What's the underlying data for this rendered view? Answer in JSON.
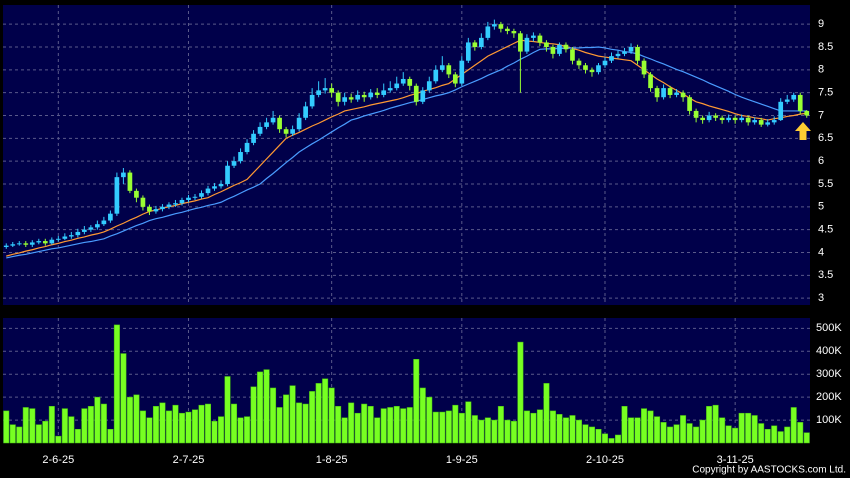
{
  "chart_data": {
    "type": "candlestick",
    "categories": [
      null,
      null,
      null,
      null,
      null,
      null,
      null,
      null,
      "2-6-25",
      null,
      null,
      null,
      null,
      null,
      null,
      null,
      null,
      null,
      null,
      null,
      null,
      null,
      null,
      null,
      null,
      null,
      null,
      null,
      "2-7-25",
      null,
      null,
      null,
      null,
      null,
      null,
      null,
      null,
      null,
      null,
      null,
      null,
      null,
      null,
      null,
      null,
      null,
      null,
      null,
      null,
      null,
      "1-8-25",
      null,
      null,
      null,
      null,
      null,
      null,
      null,
      null,
      null,
      null,
      null,
      null,
      null,
      null,
      null,
      null,
      null,
      null,
      null,
      "1-9-25",
      null,
      null,
      null,
      null,
      null,
      null,
      null,
      null,
      null,
      null,
      null,
      null,
      null,
      null,
      null,
      null,
      null,
      null,
      null,
      null,
      null,
      "2-10-25",
      null,
      null,
      null,
      null,
      null,
      null,
      null,
      null,
      null,
      null,
      null,
      null,
      null,
      null,
      null,
      null,
      null,
      null,
      null,
      "3-11-25",
      null,
      null,
      null,
      null,
      null,
      null,
      null,
      null,
      null,
      null,
      null
    ],
    "open": [
      4.12,
      4.15,
      4.18,
      4.2,
      4.17,
      4.22,
      4.25,
      4.2,
      4.28,
      4.3,
      4.35,
      4.38,
      4.45,
      4.5,
      4.55,
      4.62,
      4.7,
      4.85,
      5.65,
      5.75,
      5.35,
      5.2,
      5,
      4.9,
      4.95,
      5,
      5.05,
      5.08,
      5.15,
      5.2,
      5.22,
      5.3,
      5.4,
      5.45,
      5.5,
      5.9,
      6,
      6.2,
      6.4,
      6.6,
      6.75,
      6.85,
      6.95,
      6.7,
      6.6,
      6.7,
      6.95,
      7.2,
      7.45,
      7.55,
      7.6,
      7.5,
      7.3,
      7.4,
      7.35,
      7.45,
      7.4,
      7.5,
      7.45,
      7.55,
      7.6,
      7.7,
      7.8,
      7.65,
      7.3,
      7.55,
      7.75,
      8,
      8.1,
      7.9,
      7.7,
      8.2,
      8.6,
      8.5,
      8.7,
      8.95,
      9,
      8.9,
      8.85,
      8.8,
      8.4,
      8.7,
      8.75,
      8.6,
      8.5,
      8.35,
      8.55,
      8.45,
      8.2,
      8.1,
      8,
      7.95,
      8.1,
      8.2,
      8.3,
      8.35,
      8.4,
      8.5,
      8.2,
      7.9,
      7.6,
      7.4,
      7.6,
      7.45,
      7.5,
      7.4,
      7.1,
      6.95,
      6.9,
      7,
      6.95,
      6.9,
      6.95,
      6.9,
      6.95,
      6.85,
      6.9,
      6.8,
      6.85,
      6.9,
      7.3,
      7.35,
      7.45,
      7.1
    ],
    "high": [
      4.2,
      4.23,
      4.25,
      4.25,
      4.27,
      4.3,
      4.3,
      4.33,
      4.36,
      4.42,
      4.45,
      4.52,
      4.58,
      4.6,
      4.7,
      4.78,
      4.92,
      5.75,
      5.85,
      5.8,
      5.4,
      5.25,
      5.05,
      5.02,
      5.06,
      5.1,
      5.15,
      5.2,
      5.26,
      5.28,
      5.36,
      5.46,
      5.52,
      5.58,
      6,
      6.1,
      6.28,
      6.48,
      6.68,
      6.85,
      6.95,
      7.1,
      7,
      6.75,
      6.78,
      7.05,
      7.3,
      7.6,
      7.75,
      7.82,
      7.7,
      7.55,
      7.5,
      7.48,
      7.55,
      7.52,
      7.58,
      7.6,
      7.7,
      7.75,
      7.85,
      7.95,
      7.85,
      7.7,
      7.62,
      7.85,
      8.1,
      8.3,
      8.15,
      7.95,
      8.3,
      8.7,
      8.65,
      8.8,
      9.05,
      9.1,
      9.05,
      8.95,
      8.9,
      8.85,
      8.78,
      8.82,
      8.8,
      8.65,
      8.55,
      8.6,
      8.6,
      8.5,
      8.25,
      8.15,
      8.05,
      8.15,
      8.28,
      8.38,
      8.42,
      8.48,
      8.58,
      8.55,
      8.25,
      7.95,
      7.65,
      7.68,
      7.65,
      7.58,
      7.55,
      7.45,
      7.15,
      7,
      7.08,
      7.05,
      7,
      7.02,
      7,
      7.02,
      7,
      6.96,
      6.95,
      6.92,
      6.98,
      7.38,
      7.45,
      7.5,
      7.5,
      7.12
    ],
    "low": [
      4.08,
      4.12,
      4.15,
      4.12,
      4.12,
      4.18,
      4.15,
      4.17,
      4.24,
      4.27,
      4.3,
      4.33,
      4.4,
      4.45,
      4.5,
      4.58,
      4.65,
      4.8,
      5.5,
      5.3,
      5.1,
      4.92,
      4.82,
      4.85,
      4.9,
      4.95,
      5,
      5.03,
      5.1,
      5.15,
      5.18,
      5.25,
      5.35,
      5.4,
      5.45,
      5.85,
      5.95,
      6.15,
      6.35,
      6.55,
      6.7,
      6.8,
      6.62,
      6.52,
      6.55,
      6.65,
      6.9,
      7.15,
      7.4,
      7.48,
      7.4,
      7.2,
      7.22,
      7.28,
      7.3,
      7.3,
      7.35,
      7.38,
      7.4,
      7.5,
      7.55,
      7.65,
      7.55,
      7.22,
      7.25,
      7.5,
      7.7,
      7.95,
      7.82,
      7.62,
      7.65,
      8.15,
      8.42,
      8.45,
      8.65,
      8.88,
      8.82,
      8.78,
      8.7,
      7.5,
      8.35,
      8.62,
      8.52,
      8.4,
      8.25,
      8.3,
      8.38,
      8.12,
      8.02,
      7.92,
      7.85,
      7.9,
      8.05,
      8.15,
      8.25,
      8.3,
      8.35,
      8.12,
      7.82,
      7.52,
      7.3,
      7.35,
      7.38,
      7.4,
      7.3,
      7.02,
      6.85,
      6.82,
      6.85,
      6.88,
      6.82,
      6.85,
      6.82,
      6.85,
      6.78,
      6.8,
      6.75,
      6.76,
      6.8,
      6.88,
      7.25,
      7.3,
      7.02,
      6.95
    ],
    "close": [
      4.15,
      4.18,
      4.2,
      4.17,
      4.22,
      4.25,
      4.2,
      4.28,
      4.3,
      4.35,
      4.38,
      4.45,
      4.5,
      4.55,
      4.62,
      4.7,
      4.85,
      5.65,
      5.75,
      5.35,
      5.2,
      5,
      4.9,
      4.95,
      5,
      5.05,
      5.08,
      5.15,
      5.2,
      5.22,
      5.3,
      5.4,
      5.45,
      5.5,
      5.9,
      6,
      6.2,
      6.4,
      6.6,
      6.75,
      6.85,
      6.95,
      6.7,
      6.6,
      6.7,
      6.95,
      7.2,
      7.45,
      7.55,
      7.6,
      7.5,
      7.3,
      7.4,
      7.35,
      7.45,
      7.4,
      7.5,
      7.45,
      7.55,
      7.6,
      7.7,
      7.8,
      7.65,
      7.3,
      7.55,
      7.75,
      8,
      8.1,
      7.9,
      7.7,
      8.2,
      8.6,
      8.5,
      8.7,
      8.95,
      9,
      8.9,
      8.85,
      8.8,
      8.4,
      8.7,
      8.75,
      8.6,
      8.5,
      8.35,
      8.55,
      8.45,
      8.2,
      8.1,
      8,
      7.95,
      8.1,
      8.2,
      8.3,
      8.35,
      8.4,
      8.5,
      8.2,
      7.9,
      7.6,
      7.4,
      7.6,
      7.45,
      7.5,
      7.4,
      7.1,
      6.95,
      6.9,
      7,
      6.95,
      6.9,
      6.95,
      6.9,
      6.95,
      6.85,
      6.9,
      6.8,
      6.85,
      6.9,
      7.3,
      7.35,
      7.45,
      7.1,
      7
    ],
    "up_color": "#33ccff",
    "down_color": "#99ff33",
    "series": [
      {
        "color": "#ff9933",
        "values": [
          3.92,
          3.96,
          3.99,
          4.03,
          4.06,
          4.1,
          4.13,
          4.17,
          4.2,
          4.24,
          4.27,
          4.31,
          4.34,
          4.38,
          4.41,
          4.45,
          4.51,
          4.58,
          4.64,
          4.71,
          4.77,
          4.84,
          4.9,
          4.93,
          4.97,
          5,
          5.03,
          5.07,
          5.1,
          5.13,
          5.17,
          5.2,
          5.27,
          5.33,
          5.4,
          5.47,
          5.53,
          5.6,
          5.75,
          5.9,
          6.05,
          6.2,
          6.35,
          6.5,
          6.57,
          6.63,
          6.7,
          6.77,
          6.83,
          6.9,
          6.97,
          7.03,
          7.1,
          7.13,
          7.16,
          7.19,
          7.23,
          7.26,
          7.29,
          7.32,
          7.35,
          7.39,
          7.44,
          7.48,
          7.53,
          7.57,
          7.61,
          7.66,
          7.7,
          7.8,
          7.9,
          8,
          8.1,
          8.2,
          8.3,
          8.37,
          8.44,
          8.51,
          8.58,
          8.65,
          8.63,
          8.62,
          8.6,
          8.58,
          8.57,
          8.55,
          8.51,
          8.47,
          8.43,
          8.38,
          8.34,
          8.3,
          8.28,
          8.26,
          8.24,
          8.22,
          8.2,
          8.1,
          8,
          7.9,
          7.8,
          7.72,
          7.63,
          7.55,
          7.47,
          7.38,
          7.3,
          7.26,
          7.21,
          7.17,
          7.13,
          7.09,
          7.04,
          7,
          6.98,
          6.95,
          6.93,
          6.9,
          6.93,
          6.95,
          6.98,
          7,
          7.03,
          7.05
        ]
      },
      {
        "color": "#4a9cff",
        "values": [
          3.88,
          3.91,
          3.94,
          3.96,
          3.99,
          4.02,
          4.05,
          4.08,
          4.1,
          4.13,
          4.16,
          4.19,
          4.22,
          4.24,
          4.27,
          4.3,
          4.36,
          4.41,
          4.47,
          4.53,
          4.59,
          4.64,
          4.7,
          4.74,
          4.77,
          4.81,
          4.85,
          4.88,
          4.92,
          4.96,
          4.99,
          5.03,
          5.06,
          5.1,
          5.17,
          5.23,
          5.3,
          5.37,
          5.43,
          5.5,
          5.62,
          5.73,
          5.85,
          5.97,
          6.08,
          6.2,
          6.29,
          6.38,
          6.46,
          6.55,
          6.64,
          6.73,
          6.81,
          6.9,
          6.94,
          6.99,
          7.03,
          7.07,
          7.11,
          7.16,
          7.2,
          7.24,
          7.28,
          7.31,
          7.35,
          7.39,
          7.43,
          7.46,
          7.5,
          7.56,
          7.63,
          7.69,
          7.75,
          7.81,
          7.88,
          7.94,
          8,
          8.08,
          8.15,
          8.23,
          8.3,
          8.38,
          8.45,
          8.46,
          8.46,
          8.47,
          8.47,
          8.48,
          8.48,
          8.49,
          8.49,
          8.5,
          8.48,
          8.45,
          8.43,
          8.4,
          8.38,
          8.35,
          8.29,
          8.24,
          8.18,
          8.13,
          8.07,
          8.01,
          7.96,
          7.9,
          7.84,
          7.78,
          7.71,
          7.65,
          7.59,
          7.53,
          7.46,
          7.4,
          7.35,
          7.3,
          7.25,
          7.2,
          7.15,
          7.1,
          7.1,
          7.1,
          7.1,
          7.1
        ]
      }
    ],
    "ylim": [
      2.85,
      9.42
    ],
    "yticks": [
      3,
      3.5,
      4,
      4.5,
      5,
      5.5,
      6,
      6.5,
      7,
      7.5,
      8,
      8.5,
      9
    ],
    "grid": true,
    "volume": {
      "color": "#77ff22",
      "values": [
        140000,
        80000,
        70000,
        155000,
        150000,
        80000,
        95000,
        160000,
        30000,
        150000,
        115000,
        60000,
        150000,
        160000,
        200000,
        170000,
        60000,
        515000,
        390000,
        200000,
        210000,
        140000,
        110000,
        160000,
        175000,
        140000,
        165000,
        130000,
        135000,
        145000,
        165000,
        170000,
        95000,
        115000,
        290000,
        170000,
        110000,
        115000,
        245000,
        310000,
        320000,
        240000,
        155000,
        210000,
        250000,
        175000,
        170000,
        225000,
        260000,
        280000,
        240000,
        160000,
        110000,
        175000,
        130000,
        170000,
        160000,
        110000,
        150000,
        155000,
        160000,
        150000,
        155000,
        365000,
        240000,
        200000,
        135000,
        135000,
        140000,
        165000,
        130000,
        180000,
        120000,
        100000,
        110000,
        100000,
        160000,
        100000,
        95000,
        440000,
        140000,
        130000,
        145000,
        260000,
        140000,
        125000,
        110000,
        120000,
        100000,
        80000,
        70000,
        60000,
        40000,
        20000,
        35000,
        160000,
        110000,
        110000,
        150000,
        140000,
        115000,
        90000,
        70000,
        80000,
        120000,
        85000,
        70000,
        100000,
        160000,
        165000,
        110000,
        75000,
        65000,
        130000,
        130000,
        120000,
        85000,
        60000,
        75000,
        50000,
        70000,
        155000,
        90000,
        45000
      ],
      "ylim": [
        0,
        545000
      ],
      "yticks": [
        {
          "value": 100000,
          "label": "100K"
        },
        {
          "value": 200000,
          "label": "200K"
        },
        {
          "value": 300000,
          "label": "300K"
        },
        {
          "value": 400000,
          "label": "400K"
        },
        {
          "value": 500000,
          "label": "500K"
        }
      ]
    },
    "copyright": "Copyright by AASTOCKS.com Ltd."
  }
}
